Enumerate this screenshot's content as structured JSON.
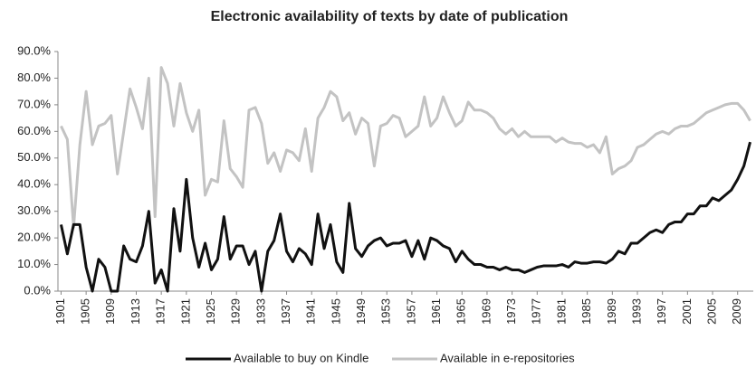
{
  "chart_data": {
    "type": "line",
    "title": "Electronic availability of texts by date of publication",
    "categories": [
      "1901",
      null,
      null,
      null,
      "1905",
      null,
      null,
      null,
      "1909",
      null,
      null,
      null,
      "1913",
      null,
      null,
      null,
      "1917",
      null,
      null,
      null,
      "1921",
      null,
      null,
      null,
      "1925",
      null,
      null,
      null,
      "1929",
      null,
      null,
      null,
      "1933",
      null,
      null,
      null,
      "1937",
      null,
      null,
      null,
      "1941",
      null,
      null,
      null,
      "1945",
      null,
      null,
      null,
      "1949",
      null,
      null,
      null,
      "1953",
      null,
      null,
      null,
      "1957",
      null,
      null,
      null,
      "1961",
      null,
      null,
      null,
      "1965",
      null,
      null,
      null,
      "1969",
      null,
      null,
      null,
      "1973",
      null,
      null,
      null,
      "1977",
      null,
      null,
      null,
      "1981",
      null,
      null,
      null,
      "1985",
      null,
      null,
      null,
      "1989",
      null,
      null,
      null,
      "1993",
      null,
      null,
      null,
      "1997",
      null,
      null,
      null,
      "2001",
      null,
      null,
      null,
      "2005",
      null,
      null,
      null,
      "2009",
      null,
      null
    ],
    "series": [
      {
        "name": "Available to buy on Kindle",
        "color": "#111111",
        "values": [
          25,
          14,
          25,
          25,
          9,
          0,
          12,
          9,
          0,
          0,
          17,
          12,
          11,
          17,
          30,
          3,
          8,
          0,
          31,
          15,
          42,
          20,
          9,
          18,
          8,
          12,
          28,
          12,
          17,
          17,
          10,
          15,
          0,
          15,
          19,
          29,
          15,
          11,
          16,
          14,
          10,
          29,
          16,
          25,
          11,
          7,
          33,
          16,
          13,
          17,
          19,
          20,
          17,
          18,
          18,
          19,
          13,
          19,
          12,
          20,
          19,
          17,
          16,
          11,
          15,
          12,
          10,
          10,
          9,
          9,
          8,
          9,
          8,
          8,
          7,
          8,
          9,
          9.5,
          9.5,
          9.5,
          10,
          9,
          11,
          10.5,
          10.5,
          11,
          11,
          10.5,
          12,
          15,
          14,
          18,
          18,
          20,
          22,
          23,
          22,
          25,
          26,
          26,
          29,
          29,
          32,
          32,
          35,
          34,
          36,
          38,
          42,
          47,
          56
        ]
      },
      {
        "name": "Available in e-repositories",
        "color": "#c3c3c3",
        "values": [
          62,
          57,
          24,
          55,
          75,
          55,
          62,
          63,
          66,
          44,
          60,
          76,
          69,
          61,
          80,
          28,
          84,
          78,
          62,
          78,
          67,
          60,
          68,
          36,
          42,
          41,
          64,
          46,
          43,
          39,
          68,
          69,
          63,
          48,
          52,
          45,
          53,
          52,
          49,
          61,
          45,
          65,
          69,
          75,
          73,
          64,
          67,
          59,
          65,
          63,
          47,
          62,
          63,
          66,
          65,
          58,
          60,
          62,
          73,
          62,
          65,
          73,
          67,
          62,
          64,
          71,
          68,
          68,
          67,
          65,
          61,
          59,
          61,
          58,
          60,
          58,
          58,
          58,
          58,
          56,
          57.5,
          56,
          55.5,
          55.5,
          54,
          55,
          52,
          58,
          44,
          46,
          47,
          49,
          54,
          55,
          57,
          59,
          60,
          59,
          61,
          62,
          62,
          63,
          65,
          67,
          68,
          69,
          70,
          70.5,
          70.5,
          68,
          64
        ]
      }
    ],
    "ylim": [
      0,
      90
    ],
    "yticks": [
      {
        "value": 0,
        "label": "0.0%"
      },
      {
        "value": 10,
        "label": "10.0%"
      },
      {
        "value": 20,
        "label": "20.0%"
      },
      {
        "value": 30,
        "label": "30.0%"
      },
      {
        "value": 40,
        "label": "40.0%"
      },
      {
        "value": 50,
        "label": "50.0%"
      },
      {
        "value": 60,
        "label": "60.0%"
      },
      {
        "value": 70,
        "label": "70.0%"
      },
      {
        "value": 80,
        "label": "80.0%"
      },
      {
        "value": 90,
        "label": "90.0%"
      }
    ],
    "grid": false,
    "legend": "bottom"
  }
}
